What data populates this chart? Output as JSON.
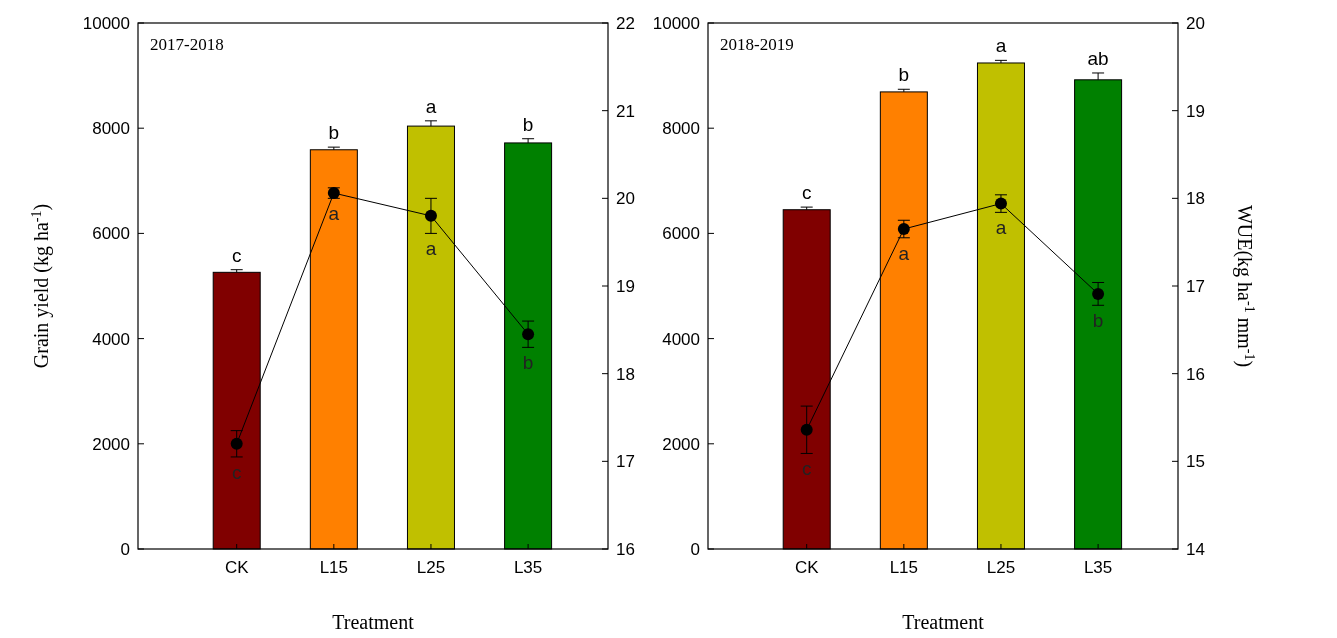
{
  "chart_data": [
    {
      "type": "bar",
      "title": "2017-2018",
      "xlabel": "Treatment",
      "ylabel": "Grain yield (kg ha$^{-1}$)",
      "categories": [
        "CK",
        "L15",
        "L25",
        "L35"
      ],
      "ylim": [
        0,
        10000
      ],
      "yticks": [
        0,
        2000,
        4000,
        6000,
        8000,
        10000
      ],
      "y2lim": [
        16,
        22
      ],
      "y2ticks": [
        16,
        17,
        18,
        19,
        20,
        21,
        22
      ],
      "marker": "circle",
      "series": [
        {
          "colors": [
            "#800000",
            "#ff8000",
            "#c0c000",
            "#008000"
          ],
          "values": [
            5260,
            7590,
            8040,
            7720
          ],
          "errors": [
            50,
            50,
            100,
            80
          ]
        },
        {
          "type": "line",
          "axis": "y2",
          "color": "#000000",
          "values": [
            17.2,
            20.06,
            19.8,
            18.45
          ],
          "errors": [
            0.15,
            0.06,
            0.2,
            0.15
          ]
        }
      ],
      "annotations": [
        {
          "text": "c",
          "x": "CK",
          "y": 5260
        },
        {
          "text": "b",
          "x": "L15",
          "y": 7590
        },
        {
          "text": "a",
          "x": "L25",
          "y": 8040
        },
        {
          "text": "b",
          "x": "L35",
          "y": 7720
        },
        "c",
        "a",
        "a",
        "b"
      ]
    },
    {
      "type": "bar",
      "title": "2018-2019",
      "xlabel": "Treatment",
      "y2label": "WUE(kg ha$^{-1}$ mm$^{-1}$)",
      "categories": [
        "CK",
        "L15",
        "L25",
        "L35"
      ],
      "ylim": [
        0,
        10000
      ],
      "yticks": [
        0,
        2000,
        4000,
        6000,
        8000,
        10000
      ],
      "y2lim": [
        14,
        20
      ],
      "y2ticks": [
        14,
        15,
        16,
        17,
        18,
        19,
        20
      ],
      "marker": "circle",
      "series": [
        {
          "colors": [
            "#800000",
            "#ff8000",
            "#c0c000",
            "#008000"
          ],
          "values": [
            6450,
            8690,
            9240,
            8920
          ],
          "errors": [
            50,
            50,
            50,
            130
          ]
        },
        {
          "type": "line",
          "axis": "y2",
          "color": "#000000",
          "values": [
            15.36,
            17.65,
            17.94,
            16.91
          ],
          "errors": [
            0.27,
            0.1,
            0.1,
            0.13
          ]
        }
      ],
      "annotations": [
        {
          "text": "c",
          "x": "CK",
          "y": 6450
        },
        {
          "text": "b",
          "x": "L15",
          "y": 8690
        },
        {
          "text": "a",
          "x": "L25",
          "y": 9240
        },
        {
          "text": "ab",
          "x": "L35",
          "y": 8920
        },
        "c",
        "a",
        "a",
        "b"
      ]
    }
  ]
}
